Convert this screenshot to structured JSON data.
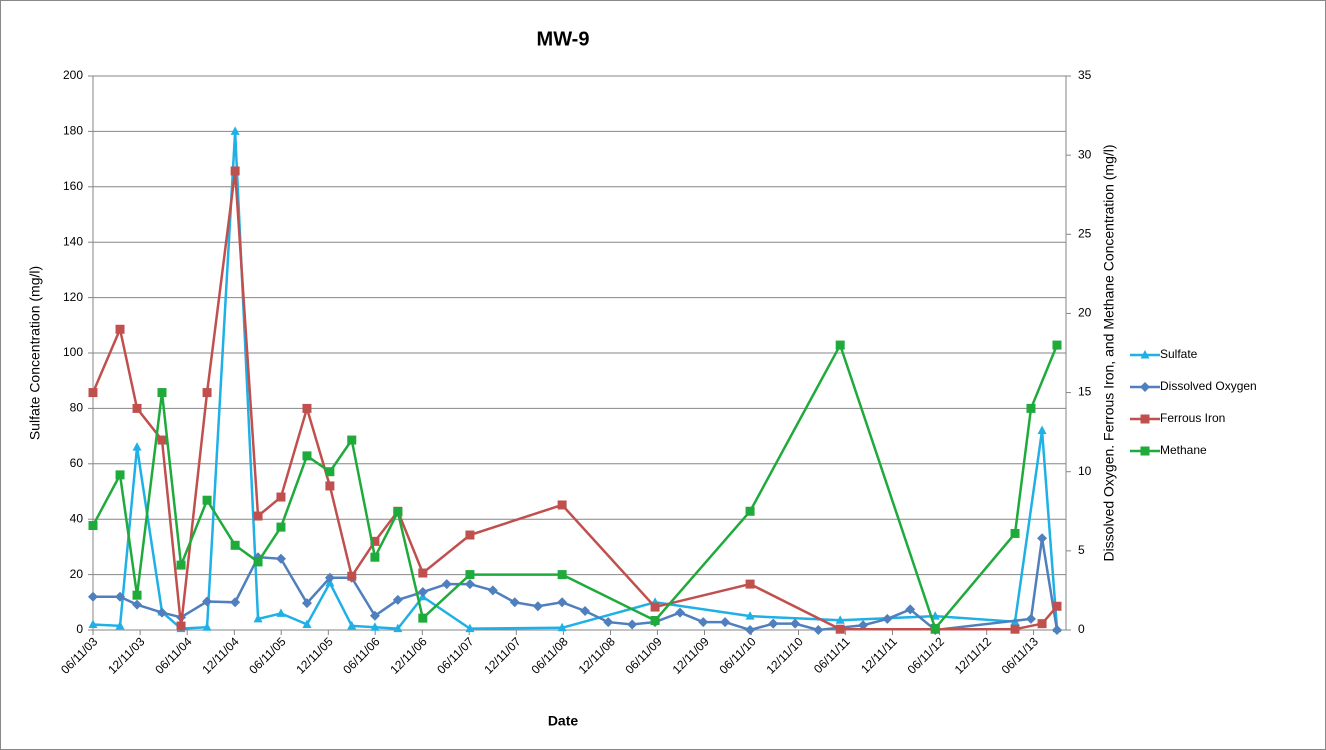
{
  "chart_data": {
    "type": "line",
    "title": "MW-9",
    "x_label": "Date",
    "y_label": "Sulfate Concentration (mg/l)",
    "y2_label": "Dissolved Oxygen. Ferrous Iron, and Methane Concentration (mg/l)",
    "xlim": [
      "06/11/03",
      "10/15/13"
    ],
    "xticks": [
      "06/11/03",
      "12/11/03",
      "06/11/04",
      "12/11/04",
      "06/11/05",
      "12/11/05",
      "06/11/06",
      "12/11/06",
      "06/11/07",
      "12/11/07",
      "06/11/08",
      "12/11/08",
      "06/11/09",
      "12/11/09",
      "06/11/10",
      "12/11/10",
      "06/11/11",
      "12/11/11",
      "06/11/12",
      "12/11/12",
      "06/11/13"
    ],
    "ylim": [
      0,
      200
    ],
    "yticks": [
      0,
      20,
      40,
      60,
      80,
      100,
      120,
      140,
      160,
      180,
      200
    ],
    "y2lim": [
      0,
      35
    ],
    "y2ticks": [
      0,
      5,
      10,
      15,
      20,
      25,
      30,
      35
    ],
    "grid": true,
    "legend": "right",
    "series": [
      {
        "name": "Sulfate",
        "color": "#1fb0e6",
        "marker": "triangle",
        "axis": "y",
        "x": [
          "06/11/03",
          "09/24/03",
          "11/29/03",
          "03/05/04",
          "05/18/04",
          "08/27/04",
          "12/14/04",
          "03/13/05",
          "06/10/05",
          "09/19/05",
          "12/17/05",
          "03/12/06",
          "06/10/06",
          "09/07/06",
          "12/13/06",
          "06/14/07",
          "06/06/08",
          "06/02/09",
          "06/06/10",
          "05/22/11",
          "05/25/12",
          "03/31/13",
          "07/14/13",
          "09/10/13"
        ],
        "values": [
          2,
          1.5,
          66,
          6.5,
          0.5,
          1,
          180,
          4,
          6,
          2,
          17,
          1.5,
          1,
          0.5,
          12,
          0.5,
          0.8,
          10,
          5,
          3.5,
          5,
          3,
          72,
          0.5
        ]
      },
      {
        "name": "Dissolved Oxygen",
        "color": "#4f7fbd",
        "marker": "diamond",
        "axis": "y2",
        "x": [
          "06/11/03",
          "09/24/03",
          "11/29/03",
          "03/05/04",
          "05/18/04",
          "08/27/04",
          "12/14/04",
          "03/13/05",
          "06/10/05",
          "09/19/05",
          "12/17/05",
          "03/12/06",
          "06/10/06",
          "09/07/06",
          "12/13/06",
          "03/16/07",
          "06/14/07",
          "09/11/07",
          "12/05/07",
          "03/04/08",
          "06/06/08",
          "09/03/08",
          "12/02/08",
          "03/05/09",
          "06/02/09",
          "09/07/09",
          "12/06/09",
          "03/01/10",
          "06/06/10",
          "09/04/10",
          "11/28/10",
          "02/26/11",
          "08/19/11",
          "11/21/11",
          "02/18/12",
          "05/25/12",
          "06/01/13",
          "07/14/13",
          "09/10/13"
        ],
        "values": [
          2.1,
          2.1,
          1.6,
          1.1,
          0.8,
          1.8,
          1.75,
          4.6,
          4.5,
          1.7,
          3.3,
          3.3,
          0.9,
          1.9,
          2.4,
          2.9,
          2.9,
          2.5,
          1.75,
          1.5,
          1.75,
          1.2,
          0.5,
          0.35,
          0.5,
          1.1,
          0.5,
          0.5,
          0,
          0.4,
          0.4,
          0,
          0.3,
          0.7,
          1.3,
          0,
          0.7,
          5.8,
          0
        ]
      },
      {
        "name": "Ferrous Iron",
        "color": "#c0504d",
        "marker": "square",
        "axis": "y2",
        "x": [
          "06/11/03",
          "09/24/03",
          "11/29/03",
          "03/05/04",
          "05/18/04",
          "08/27/04",
          "12/14/04",
          "03/13/05",
          "06/10/05",
          "09/19/05",
          "12/17/05",
          "03/12/06",
          "06/10/06",
          "09/07/06",
          "12/13/06",
          "06/14/07",
          "06/06/08",
          "06/02/09",
          "06/06/10",
          "05/22/11",
          "05/25/12",
          "03/31/13",
          "07/14/13",
          "09/10/13"
        ],
        "values": [
          15,
          19,
          14,
          12,
          0.25,
          15,
          29,
          7.2,
          8.4,
          14,
          9.1,
          3.4,
          5.6,
          7.5,
          3.6,
          6,
          7.9,
          1.45,
          2.9,
          0.05,
          0.05,
          0.05,
          0.4,
          1.5
        ]
      },
      {
        "name": "Methane",
        "color": "#1faa3c",
        "marker": "square",
        "axis": "y2",
        "x": [
          "06/11/03",
          "09/24/03",
          "11/29/03",
          "03/05/04",
          "05/18/04",
          "08/27/04",
          "12/14/04",
          "03/13/05",
          "06/10/05",
          "09/19/05",
          "12/17/05",
          "03/12/06",
          "06/10/06",
          "09/07/06",
          "12/13/06",
          "06/14/07",
          "06/06/08",
          "06/02/09",
          "06/06/10",
          "05/22/11",
          "05/25/12",
          "03/31/13",
          "06/01/13",
          "09/10/13"
        ],
        "values": [
          6.6,
          9.8,
          2.2,
          15,
          4.1,
          8.2,
          5.35,
          4.3,
          6.5,
          11,
          10,
          12,
          4.6,
          7.45,
          0.75,
          3.5,
          3.5,
          0.6,
          7.5,
          18,
          0.1,
          6.1,
          14,
          18
        ]
      }
    ]
  }
}
